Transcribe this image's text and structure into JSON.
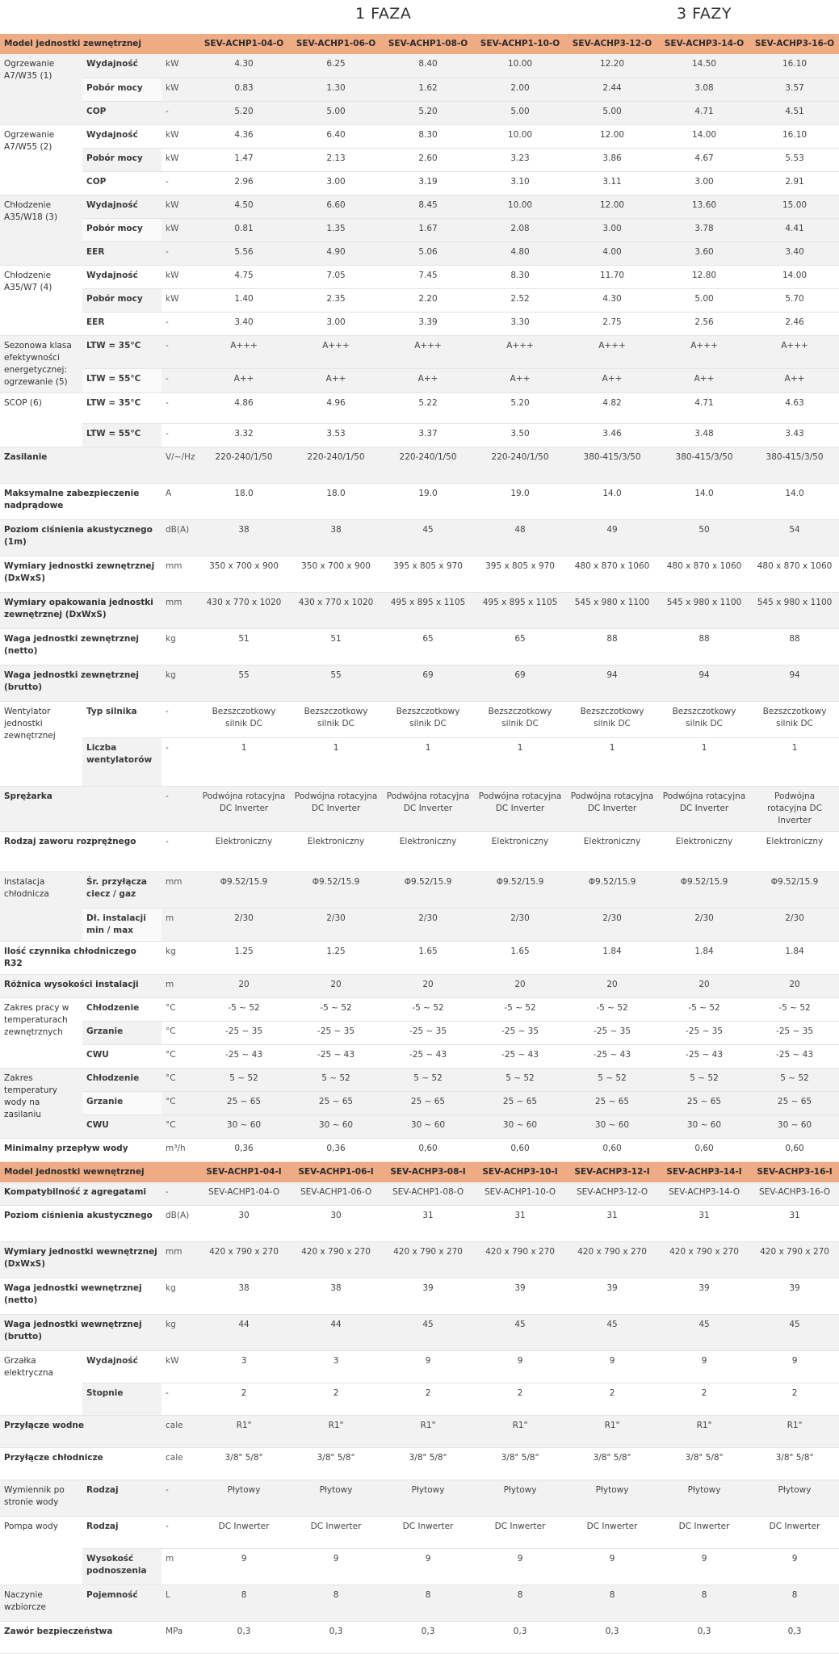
{
  "phases": {
    "one": "1 FAZA",
    "three": "3 FAZY"
  },
  "outdoor_header": {
    "label": "Model jednostki zewnętrznej",
    "models": [
      "SEV-ACHP1-04-O",
      "SEV-ACHP1-06-O",
      "SEV-ACHP1-08-O",
      "SEV-ACHP1-10-O",
      "SEV-ACHP3-12-O",
      "SEV-ACHP3-14-O",
      "SEV-ACHP3-16-O"
    ]
  },
  "outdoor_groups": [
    {
      "label": "Ogrzewanie A7/W35 (1)",
      "rows": [
        {
          "sub": "Wydajność",
          "unit": "kW",
          "values": [
            "4.30",
            "6.25",
            "8.40",
            "10.00",
            "12.20",
            "14.50",
            "16.10"
          ]
        },
        {
          "sub": "Pobór mocy",
          "unit": "kW",
          "values": [
            "0.83",
            "1.30",
            "1.62",
            "2.00",
            "2.44",
            "3.08",
            "3.57"
          ]
        },
        {
          "sub": "COP",
          "unit": "-",
          "values": [
            "5.20",
            "5.00",
            "5.20",
            "5.00",
            "5.00",
            "4.71",
            "4.51"
          ]
        }
      ]
    },
    {
      "label": "Ogrzewanie A7/W55 (2)",
      "rows": [
        {
          "sub": "Wydajność",
          "unit": "kW",
          "values": [
            "4.36",
            "6.40",
            "8.30",
            "10.00",
            "12.00",
            "14.00",
            "16.10"
          ]
        },
        {
          "sub": "Pobór mocy",
          "unit": "kW",
          "values": [
            "1.47",
            "2.13",
            "2.60",
            "3.23",
            "3.86",
            "4.67",
            "5.53"
          ]
        },
        {
          "sub": "COP",
          "unit": "-",
          "values": [
            "2.96",
            "3.00",
            "3.19",
            "3.10",
            "3.11",
            "3.00",
            "2.91"
          ]
        }
      ]
    },
    {
      "label": "Chłodzenie A35/W18 (3)",
      "rows": [
        {
          "sub": "Wydajność",
          "unit": "kW",
          "values": [
            "4.50",
            "6.60",
            "8.45",
            "10.00",
            "12.00",
            "13.60",
            "15.00"
          ]
        },
        {
          "sub": "Pobór mocy",
          "unit": "kW",
          "values": [
            "0.81",
            "1.35",
            "1.67",
            "2.08",
            "3.00",
            "3.78",
            "4.41"
          ]
        },
        {
          "sub": "EER",
          "unit": "-",
          "values": [
            "5.56",
            "4.90",
            "5.06",
            "4.80",
            "4.00",
            "3.60",
            "3.40"
          ]
        }
      ]
    },
    {
      "label": "Chłodzenie A35/W7 (4)",
      "rows": [
        {
          "sub": "Wydajność",
          "unit": "kW",
          "values": [
            "4.75",
            "7.05",
            "7.45",
            "8.30",
            "11.70",
            "12.80",
            "14.00"
          ]
        },
        {
          "sub": "Pobór mocy",
          "unit": "kW",
          "values": [
            "1.40",
            "2.35",
            "2.20",
            "2.52",
            "4.30",
            "5.00",
            "5.70"
          ]
        },
        {
          "sub": "EER",
          "unit": "-",
          "values": [
            "3.40",
            "3.00",
            "3.39",
            "3.30",
            "2.75",
            "2.56",
            "2.46"
          ]
        }
      ]
    },
    {
      "label": "Sezonowa klasa efektywności energetycznej: ogrzewanie (5)",
      "rows": [
        {
          "sub": "LTW = 35°C",
          "unit": "-",
          "values": [
            "A+++",
            "A+++",
            "A+++",
            "A+++",
            "A+++",
            "A+++",
            "A+++"
          ]
        },
        {
          "sub": "LTW = 55°C",
          "unit": "-",
          "values": [
            "A++",
            "A++",
            "A++",
            "A++",
            "A++",
            "A++",
            "A++"
          ]
        }
      ]
    },
    {
      "label": "SCOP (6)",
      "rows": [
        {
          "sub": "LTW = 35°C",
          "unit": "-",
          "values": [
            "4.86",
            "4.96",
            "5.22",
            "5.20",
            "4.82",
            "4.71",
            "4.63"
          ]
        },
        {
          "sub": "LTW = 55°C",
          "unit": "-",
          "values": [
            "3.32",
            "3.53",
            "3.37",
            "3.50",
            "3.46",
            "3.48",
            "3.43"
          ]
        }
      ]
    },
    {
      "label": "Zasilanie",
      "rows": [
        {
          "sub": "",
          "unit": "V/~/Hz",
          "values": [
            "220-240/1/50",
            "220-240/1/50",
            "220-240/1/50",
            "220-240/1/50",
            "380-415/3/50",
            "380-415/3/50",
            "380-415/3/50"
          ]
        }
      ]
    },
    {
      "label": "Maksymalne zabezpieczenie nadprądowe",
      "rows": [
        {
          "sub": "",
          "unit": "A",
          "values": [
            "18.0",
            "18.0",
            "19.0",
            "19.0",
            "14.0",
            "14.0",
            "14.0"
          ]
        }
      ]
    },
    {
      "label": "Poziom ciśnienia akustycznego (1m)",
      "rows": [
        {
          "sub": "",
          "unit": "dB(A)",
          "values": [
            "38",
            "38",
            "45",
            "48",
            "49",
            "50",
            "54"
          ]
        }
      ]
    },
    {
      "label": "Wymiary jednostki zewnętrznej (DxWxS)",
      "rows": [
        {
          "sub": "",
          "unit": "mm",
          "values": [
            "350 x 700 x 900",
            "350 x 700 x 900",
            "395 x 805 x 970",
            "395 x 805 x 970",
            "480 x 870 x 1060",
            "480 x 870 x 1060",
            "480 x 870 x 1060"
          ]
        }
      ]
    },
    {
      "label": "Wymiary opakowania jednostki zewnętrznej (DxWxS)",
      "rows": [
        {
          "sub": "",
          "unit": "mm",
          "values": [
            "430 x 770 x 1020",
            "430 x 770 x 1020",
            "495 x 895 x 1105",
            "495 x 895 x 1105",
            "545 x 980 x 1100",
            "545 x 980 x 1100",
            "545 x 980 x 1100"
          ]
        }
      ]
    },
    {
      "label": "Waga jednostki zewnętrznej (netto)",
      "rows": [
        {
          "sub": "",
          "unit": "kg",
          "values": [
            "51",
            "51",
            "65",
            "65",
            "88",
            "88",
            "88"
          ]
        }
      ]
    },
    {
      "label": "Waga jednostki zewnętrznej (brutto)",
      "rows": [
        {
          "sub": "",
          "unit": "kg",
          "values": [
            "55",
            "55",
            "69",
            "69",
            "94",
            "94",
            "94"
          ]
        }
      ]
    },
    {
      "label": "Wentylator jednostki zewnętrznej",
      "rows": [
        {
          "sub": "Typ silnika",
          "unit": "-",
          "values": [
            "Bezszczotkowy silnik DC",
            "Bezszczotkowy silnik DC",
            "Bezszczotkowy silnik DC",
            "Bezszczotkowy silnik DC",
            "Bezszczotkowy silnik DC",
            "Bezszczotkowy silnik DC",
            "Bezszczotkowy silnik DC"
          ]
        },
        {
          "sub": "Liczba wentylatorów",
          "unit": "-",
          "values": [
            "1",
            "1",
            "1",
            "1",
            "1",
            "1",
            "1"
          ]
        }
      ]
    },
    {
      "label": "Sprężarka",
      "rows": [
        {
          "sub": "",
          "unit": "-",
          "values": [
            "Podwójna rotacyjna DC Inverter",
            "Podwójna rotacyjna DC Inverter",
            "Podwójna rotacyjna DC Inverter",
            "Podwójna rotacyjna DC Inverter",
            "Podwójna rotacyjna DC Inverter",
            "Podwójna rotacyjna DC Inverter",
            "Podwójna rotacyjna DC Inverter"
          ]
        }
      ]
    },
    {
      "label": "Rodzaj zaworu rozprężnego",
      "rows": [
        {
          "sub": "",
          "unit": "-",
          "values": [
            "Elektroniczny",
            "Elektroniczny",
            "Elektroniczny",
            "Elektroniczny",
            "Elektroniczny",
            "Elektroniczny",
            "Elektroniczny"
          ]
        }
      ]
    },
    {
      "label": "Instalacja chłodnicza",
      "rows": [
        {
          "sub": "Śr. przyłącza ciecz / gaz",
          "unit": "mm",
          "values": [
            "Φ9.52/15.9",
            "Φ9.52/15.9",
            "Φ9.52/15.9",
            "Φ9.52/15.9",
            "Φ9.52/15.9",
            "Φ9.52/15.9",
            "Φ9.52/15.9"
          ]
        },
        {
          "sub": "Dł. instalacji min / max",
          "unit": "m",
          "values": [
            "2/30",
            "2/30",
            "2/30",
            "2/30",
            "2/30",
            "2/30",
            "2/30"
          ]
        }
      ]
    },
    {
      "label": "Ilość czynnika chłodniczego R32",
      "rows": [
        {
          "sub": "",
          "unit": "kg",
          "values": [
            "1.25",
            "1.25",
            "1.65",
            "1.65",
            "1.84",
            "1.84",
            "1.84"
          ]
        }
      ]
    },
    {
      "label": "Różnica wysokości instalacji",
      "rows": [
        {
          "sub": "",
          "unit": "m",
          "values": [
            "20",
            "20",
            "20",
            "20",
            "20",
            "20",
            "20"
          ]
        }
      ]
    },
    {
      "label": "Zakres pracy w temperaturach zewnętrznych",
      "rows": [
        {
          "sub": "Chłodzenie",
          "unit": "°C",
          "values": [
            "-5 ~ 52",
            "-5 ~ 52",
            "-5 ~ 52",
            "-5 ~ 52",
            "-5 ~ 52",
            "-5 ~ 52",
            "-5 ~ 52"
          ]
        },
        {
          "sub": "Grzanie",
          "unit": "°C",
          "values": [
            "-25 ~ 35",
            "-25 ~ 35",
            "-25 ~ 35",
            "-25 ~ 35",
            "-25 ~ 35",
            "-25 ~ 35",
            "-25 ~ 35"
          ]
        },
        {
          "sub": "CWU",
          "unit": "°C",
          "values": [
            "-25 ~ 43",
            "-25 ~ 43",
            "-25 ~ 43",
            "-25 ~ 43",
            "-25 ~ 43",
            "-25 ~ 43",
            "-25 ~ 43"
          ]
        }
      ]
    },
    {
      "label": "Zakres temperatury wody na zasilaniu",
      "rows": [
        {
          "sub": "Chłodzenie",
          "unit": "°C",
          "values": [
            "5 ~ 52",
            "5 ~ 52",
            "5 ~ 52",
            "5 ~ 52",
            "5 ~ 52",
            "5 ~ 52",
            "5 ~ 52"
          ]
        },
        {
          "sub": "Grzanie",
          "unit": "°C",
          "values": [
            "25 ~ 65",
            "25 ~ 65",
            "25 ~ 65",
            "25 ~ 65",
            "25 ~ 65",
            "25 ~ 65",
            "25 ~ 65"
          ]
        },
        {
          "sub": "CWU",
          "unit": "°C",
          "values": [
            "30 ~ 60",
            "30 ~ 60",
            "30 ~ 60",
            "30 ~ 60",
            "30 ~ 60",
            "30 ~ 60",
            "30 ~ 60"
          ]
        }
      ]
    },
    {
      "label": "Minimalny przepływ wody",
      "rows": [
        {
          "sub": "",
          "unit": "m³/h",
          "values": [
            "0,36",
            "0,36",
            "0,60",
            "0,60",
            "0,60",
            "0,60",
            "0,60"
          ]
        }
      ]
    }
  ],
  "indoor_header": {
    "label": "Model jednostki wewnętrznej",
    "models": [
      "SEV-ACHP1-04-I",
      "SEV-ACHP1-06-I",
      "SEV-ACHP3-08-I",
      "SEV-ACHP3-10-I",
      "SEV-ACHP3-12-I",
      "SEV-ACHP3-14-I",
      "SEV-ACHP3-16-I"
    ]
  },
  "indoor_groups": [
    {
      "label": "Kompatybilność z agregatami",
      "rows": [
        {
          "sub": "",
          "unit": "-",
          "values": [
            "SEV-ACHP1-04-O",
            "SEV-ACHP1-06-O",
            "SEV-ACHP1-08-O",
            "SEV-ACHP1-10-O",
            "SEV-ACHP3-12-O",
            "SEV-ACHP3-14-O",
            "SEV-ACHP3-16-O"
          ]
        }
      ]
    },
    {
      "label": "Poziom ciśnienia akustycznego",
      "rows": [
        {
          "sub": "",
          "unit": "dB(A)",
          "values": [
            "30",
            "30",
            "31",
            "31",
            "31",
            "31",
            "31"
          ]
        }
      ]
    },
    {
      "label": "Wymiary jednostki wewnętrznej (DxWxS)",
      "rows": [
        {
          "sub": "",
          "unit": "mm",
          "values": [
            "420 x 790 x 270",
            "420 x 790 x 270",
            "420 x 790 x 270",
            "420 x 790 x 270",
            "420 x 790 x 270",
            "420 x 790 x 270",
            "420 x 790 x 270"
          ]
        }
      ]
    },
    {
      "label": "Waga jednostki wewnętrznej (netto)",
      "rows": [
        {
          "sub": "",
          "unit": "kg",
          "values": [
            "38",
            "38",
            "39",
            "39",
            "39",
            "39",
            "39"
          ]
        }
      ]
    },
    {
      "label": "Waga jednostki wewnętrznej (brutto)",
      "rows": [
        {
          "sub": "",
          "unit": "kg",
          "values": [
            "44",
            "44",
            "45",
            "45",
            "45",
            "45",
            "45"
          ]
        }
      ]
    },
    {
      "label": "Grzałka elektryczna",
      "rows": [
        {
          "sub": "Wydajność",
          "unit": "kW",
          "values": [
            "3",
            "3",
            "9",
            "9",
            "9",
            "9",
            "9"
          ]
        },
        {
          "sub": "Stopnie",
          "unit": "-",
          "values": [
            "2",
            "2",
            "2",
            "2",
            "2",
            "2",
            "2"
          ]
        }
      ]
    },
    {
      "label": "Przyłącze wodne",
      "rows": [
        {
          "sub": "",
          "unit": "cale",
          "values": [
            "R1\"",
            "R1\"",
            "R1\"",
            "R1\"",
            "R1\"",
            "R1\"",
            "R1\""
          ]
        }
      ]
    },
    {
      "label": "Przyłącze chłodnicze",
      "rows": [
        {
          "sub": "",
          "unit": "cale",
          "values": [
            "3/8\" 5/8\"",
            "3/8\" 5/8\"",
            "3/8\" 5/8\"",
            "3/8\" 5/8\"",
            "3/8\" 5/8\"",
            "3/8\" 5/8\"",
            "3/8\" 5/8\""
          ]
        }
      ]
    },
    {
      "label": "Wymiennik po stronie wody",
      "rows": [
        {
          "sub": "Rodzaj",
          "unit": "-",
          "values": [
            "Płytowy",
            "Płytowy",
            "Płytowy",
            "Płytowy",
            "Płytowy",
            "Płytowy",
            "Płytowy"
          ]
        }
      ]
    },
    {
      "label": "Pompa wody",
      "rows": [
        {
          "sub": "Rodzaj",
          "unit": "-",
          "values": [
            "DC Inwerter",
            "DC Inwerter",
            "DC Inwerter",
            "DC Inwerter",
            "DC Inwerter",
            "DC Inwerter",
            "DC Inwerter"
          ]
        },
        {
          "sub": "Wysokość podnoszenia",
          "unit": "m",
          "values": [
            "9",
            "9",
            "9",
            "9",
            "9",
            "9",
            "9"
          ]
        }
      ]
    },
    {
      "label": "Naczynie wzbiorcze",
      "rows": [
        {
          "sub": "Pojemność",
          "unit": "L",
          "values": [
            "8",
            "8",
            "8",
            "8",
            "8",
            "8",
            "8"
          ]
        }
      ]
    },
    {
      "label": "Zawór bezpieczeństwa",
      "rows": [
        {
          "sub": "",
          "unit": "MPa",
          "values": [
            "0,3",
            "0,3",
            "0,3",
            "0,3",
            "0,3",
            "0,3",
            "0,3"
          ]
        }
      ]
    }
  ]
}
